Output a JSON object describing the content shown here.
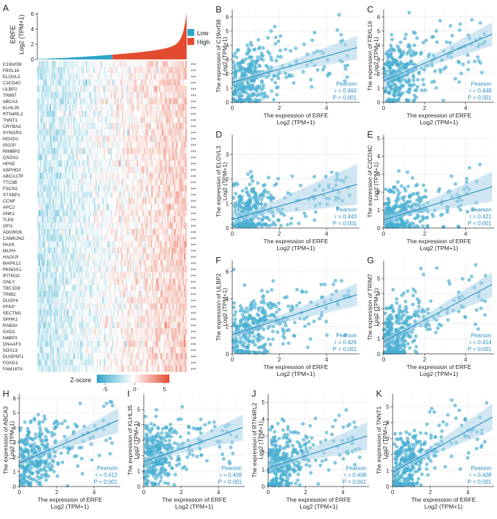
{
  "colors": {
    "low": "#2da5c9",
    "high": "#e34b2f",
    "point": "#4fb4d6",
    "line": "#2b8fc2",
    "band": "#a9d4ea",
    "gridline": "#ebebeb",
    "text": "#333333"
  },
  "panel_a": {
    "letter": "A",
    "ylabel_top": "ERFE",
    "ylabel_bottom": "Log2 (TPM+1)",
    "yticks": [
      "0",
      "2",
      "4",
      "6"
    ],
    "legend": {
      "low": "Low",
      "high": "High"
    },
    "genes": [
      "C19orf38",
      "FBXL16",
      "ELOVL3",
      "C2CD4C",
      "ULBP2",
      "TRIM7",
      "ABCA3",
      "KLHL35",
      "RTN4RL2",
      "TNNT1",
      "CRYBA2",
      "SYNGR3",
      "HOXD1",
      "ISG20",
      "RIMBP3",
      "QSOX1",
      "HPSE",
      "ASPHD2",
      "ABCA17P",
      "TTC9B",
      "FSCN1",
      "STXBP1",
      "CCNF",
      "APC2",
      "ANK1",
      "TLE6",
      "GFI1",
      "ADGRG6",
      "CAMK2N2",
      "PAX9",
      "MLPH",
      "HAGLR",
      "MAPK12",
      "PKNOX1",
      "IFITM10",
      "GNLY",
      "TBC1D8",
      "TRIB2",
      "DUSP4",
      "PFKP",
      "SECTM1",
      "SPHK1",
      "RAB3A",
      "GAD1",
      "N4BP3",
      "DNAAF3",
      "SOX13",
      "DUSP5P1",
      "FOXD1",
      "FAM167A"
    ],
    "significance": "***",
    "zscore_label": "Z-score",
    "zscore_ticks": [
      "-5",
      "0",
      "5"
    ]
  },
  "scatter_common": {
    "xlabel": "The expression of ERFE",
    "xunit": "Log2 (TPM+1)",
    "method": "Pearson",
    "pvalue": "P < 0.001"
  },
  "chart_data": [
    {
      "type": "scatter",
      "letter": "B",
      "gene": "C19orf38",
      "ylabel": "The expression of C19orf38",
      "r": "r = 0.460",
      "slope": 0.46,
      "intercept": 1.4,
      "xlim": [
        0,
        5.4
      ],
      "ylim": [
        0,
        6.5
      ],
      "xticks": [
        0,
        2,
        4
      ],
      "yticks": [
        0,
        1,
        2,
        3,
        4,
        5,
        6
      ]
    },
    {
      "type": "scatter",
      "letter": "C",
      "gene": "FBXL16",
      "ylabel": "The expression of FBXL16",
      "r": "r = 0.448",
      "slope": 0.62,
      "intercept": 1.5,
      "xlim": [
        0,
        5.4
      ],
      "ylim": [
        0,
        6.5
      ],
      "xticks": [
        0,
        2,
        4
      ],
      "yticks": [
        0,
        1,
        2,
        3,
        4,
        5,
        6
      ]
    },
    {
      "type": "scatter",
      "letter": "D",
      "gene": "ELOVL3",
      "ylabel": "The expression of ELOVL3",
      "r": "r = 0.443",
      "slope": 0.27,
      "intercept": 0.35,
      "xlim": [
        0,
        5.4
      ],
      "ylim": [
        0,
        3.8
      ],
      "xticks": [
        0,
        2,
        4
      ],
      "yticks": [
        0,
        1,
        2,
        3
      ]
    },
    {
      "type": "scatter",
      "letter": "E",
      "gene": "C2CD4C",
      "ylabel": "The expression of C2CD4C",
      "r": "r = 0.421",
      "slope": 0.35,
      "intercept": 0.45,
      "xlim": [
        0,
        5.4
      ],
      "ylim": [
        0,
        5.2
      ],
      "xticks": [
        0,
        2,
        4
      ],
      "yticks": [
        0,
        1,
        2,
        3,
        4,
        5
      ]
    },
    {
      "type": "scatter",
      "letter": "F",
      "gene": "ULBP2",
      "ylabel": "The expression of ULBP2",
      "r": "r = 0.426",
      "slope": 0.55,
      "intercept": 1.4,
      "xlim": [
        0,
        5.4
      ],
      "ylim": [
        0,
        6.8
      ],
      "xticks": [
        0,
        2,
        4
      ],
      "yticks": [
        0,
        2,
        4,
        6
      ]
    },
    {
      "type": "scatter",
      "letter": "G",
      "gene": "TRIM7",
      "ylabel": "The expression of TRIM7",
      "r": "r = 0.414",
      "slope": 0.72,
      "intercept": 0.8,
      "xlim": [
        0,
        5.4
      ],
      "ylim": [
        0,
        6.2
      ],
      "xticks": [
        0,
        2,
        4
      ],
      "yticks": [
        0,
        1,
        2,
        3,
        4,
        5
      ]
    },
    {
      "type": "scatter",
      "letter": "H",
      "gene": "ABCA3",
      "ylabel": "The expression of ABCA3",
      "r": "r = 0.412",
      "slope": 0.55,
      "intercept": 1.6,
      "xlim": [
        0,
        5.4
      ],
      "ylim": [
        0,
        6.3
      ],
      "xticks": [
        0,
        2,
        4
      ],
      "yticks": [
        0,
        1,
        2,
        3,
        4,
        5,
        6
      ]
    },
    {
      "type": "scatter",
      "letter": "I",
      "gene": "KLHL35",
      "ylabel": "The expression of KLHL35",
      "r": "r = 0.409",
      "slope": 0.42,
      "intercept": 1.6,
      "xlim": [
        0,
        5.4
      ],
      "ylim": [
        0,
        6.0
      ],
      "xticks": [
        0,
        2,
        4
      ],
      "yticks": [
        0,
        1,
        2,
        3,
        4,
        5
      ]
    },
    {
      "type": "scatter",
      "letter": "J",
      "gene": "RTN4RL2",
      "ylabel": "The expression of RTN4RL2",
      "r": "r = 0.408",
      "slope": 0.36,
      "intercept": 1.1,
      "xlim": [
        0,
        5.4
      ],
      "ylim": [
        0,
        5.5
      ],
      "xticks": [
        0,
        2,
        4
      ],
      "yticks": [
        0,
        1,
        2,
        3,
        4,
        5
      ]
    },
    {
      "type": "scatter",
      "letter": "K",
      "gene": "TNNT1",
      "ylabel": "The expression of TNNT1",
      "r": "r = 0.408",
      "slope": 0.65,
      "intercept": 0.9,
      "xlim": [
        0,
        5.4
      ],
      "ylim": [
        0,
        5.8
      ],
      "xticks": [
        0,
        2,
        4
      ],
      "yticks": [
        0,
        1,
        2,
        3,
        4,
        5
      ]
    }
  ]
}
